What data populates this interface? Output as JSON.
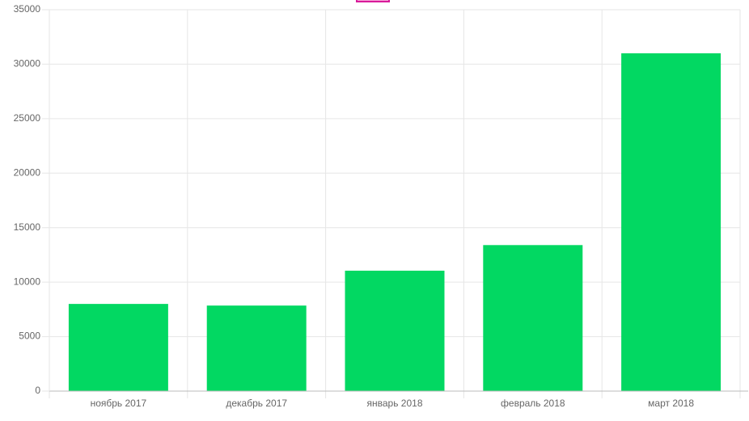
{
  "chart_data": {
    "type": "bar",
    "categories": [
      "ноябрь 2017",
      "декабрь 2017",
      "январь 2018",
      "февраль 2018",
      "март 2018"
    ],
    "values": [
      8000,
      7850,
      11050,
      13400,
      31000
    ],
    "color": "#02d862",
    "ylim": [
      0,
      35000
    ],
    "yticks": [
      0,
      5000,
      10000,
      15000,
      20000,
      25000,
      30000,
      35000
    ],
    "grid": true
  }
}
